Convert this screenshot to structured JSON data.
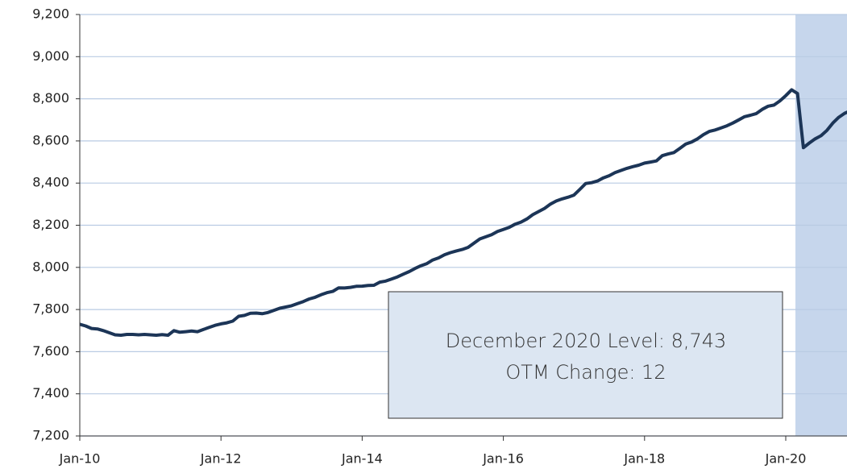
{
  "chart_data": {
    "type": "line",
    "categories": [
      "Jan-10",
      null,
      null,
      null,
      null,
      null,
      null,
      null,
      null,
      null,
      null,
      null,
      null,
      null,
      null,
      null,
      null,
      null,
      null,
      null,
      null,
      null,
      null,
      null,
      "Jan-12",
      null,
      null,
      null,
      null,
      null,
      null,
      null,
      null,
      null,
      null,
      null,
      null,
      null,
      null,
      null,
      null,
      null,
      null,
      null,
      null,
      null,
      null,
      null,
      "Jan-14",
      null,
      null,
      null,
      null,
      null,
      null,
      null,
      null,
      null,
      null,
      null,
      null,
      null,
      null,
      null,
      null,
      null,
      null,
      null,
      null,
      null,
      null,
      null,
      "Jan-16",
      null,
      null,
      null,
      null,
      null,
      null,
      null,
      null,
      null,
      null,
      null,
      null,
      null,
      null,
      null,
      null,
      null,
      null,
      null,
      null,
      null,
      null,
      null,
      "Jan-18",
      null,
      null,
      null,
      null,
      null,
      null,
      null,
      null,
      null,
      null,
      null,
      null,
      null,
      null,
      null,
      null,
      null,
      null,
      null,
      null,
      null,
      null,
      null,
      "Jan-20",
      null,
      null,
      null,
      null,
      null,
      null,
      null,
      null,
      null,
      null,
      null
    ],
    "values": [
      7730,
      7722,
      7710,
      7708,
      7700,
      7690,
      7680,
      7678,
      7682,
      7682,
      7680,
      7682,
      7680,
      7678,
      7681,
      7678,
      7700,
      7692,
      7695,
      7698,
      7695,
      7705,
      7715,
      7725,
      7732,
      7737,
      7745,
      7768,
      7772,
      7782,
      7783,
      7780,
      7786,
      7796,
      7806,
      7812,
      7818,
      7828,
      7838,
      7850,
      7858,
      7870,
      7880,
      7886,
      7903,
      7902,
      7905,
      7910,
      7911,
      7914,
      7915,
      7930,
      7935,
      7945,
      7955,
      7968,
      7980,
      7995,
      8008,
      8018,
      8035,
      8045,
      8060,
      8070,
      8078,
      8085,
      8095,
      8115,
      8135,
      8145,
      8155,
      8170,
      8180,
      8190,
      8205,
      8215,
      8230,
      8250,
      8265,
      8280,
      8300,
      8315,
      8325,
      8333,
      8343,
      8370,
      8398,
      8402,
      8410,
      8425,
      8435,
      8450,
      8460,
      8470,
      8478,
      8485,
      8495,
      8500,
      8505,
      8530,
      8538,
      8545,
      8565,
      8585,
      8595,
      8610,
      8630,
      8645,
      8652,
      8662,
      8672,
      8685,
      8700,
      8715,
      8722,
      8730,
      8750,
      8765,
      8770,
      8790,
      8815,
      8843,
      8825,
      8568,
      8590,
      8610,
      8625,
      8650,
      8685,
      8712,
      8731,
      8743
    ],
    "color": "#1c3557",
    "ylim": [
      7200,
      9200
    ],
    "yticks": [
      {
        "value": 7200,
        "label": "7,200"
      },
      {
        "value": 7400,
        "label": "7,400"
      },
      {
        "value": 7600,
        "label": "7,600"
      },
      {
        "value": 7800,
        "label": "7,800"
      },
      {
        "value": 8000,
        "label": "8,000"
      },
      {
        "value": 8200,
        "label": "8,200"
      },
      {
        "value": 8400,
        "label": "8,400"
      },
      {
        "value": 8600,
        "label": "8,600"
      },
      {
        "value": 8800,
        "label": "8,800"
      },
      {
        "value": 9000,
        "label": "9,000"
      },
      {
        "value": 9200,
        "label": "9,200"
      }
    ],
    "grid": true,
    "annotations": [
      "December 2020 Level: 8,743",
      "OTM Change: 12"
    ]
  }
}
